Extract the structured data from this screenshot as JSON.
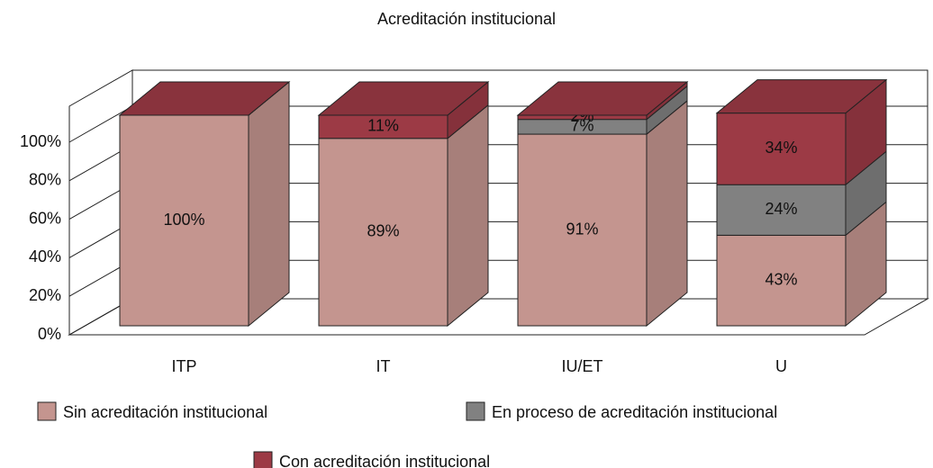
{
  "chart_data": {
    "type": "bar3d_stacked",
    "title": "Acreditación institucional",
    "categories": [
      "ITP",
      "IT",
      "IU/ET",
      "U"
    ],
    "series": [
      {
        "name": "Sin acreditación institucional",
        "color": "#c4958f",
        "values": [
          100,
          89,
          91,
          43
        ],
        "value_labels": [
          "100%",
          "89%",
          "91%",
          "43%"
        ]
      },
      {
        "name": "En proceso de acreditación institucional",
        "color": "#818181",
        "values": [
          0,
          0,
          7,
          24
        ],
        "value_labels": [
          null,
          null,
          "7%",
          "24%"
        ]
      },
      {
        "name": "Con acreditación institucional",
        "color": "#9c3a45",
        "values": [
          0,
          11,
          2,
          34
        ],
        "value_labels": [
          null,
          "11%",
          "2%",
          "34%"
        ]
      }
    ],
    "ylim": [
      0,
      100
    ],
    "yticks": [
      {
        "value": 0,
        "label": "0%"
      },
      {
        "value": 20,
        "label": "20%"
      },
      {
        "value": 40,
        "label": "40%"
      },
      {
        "value": 60,
        "label": "60%"
      },
      {
        "value": 80,
        "label": "80%"
      },
      {
        "value": 100,
        "label": "100%"
      }
    ],
    "grid": true
  }
}
